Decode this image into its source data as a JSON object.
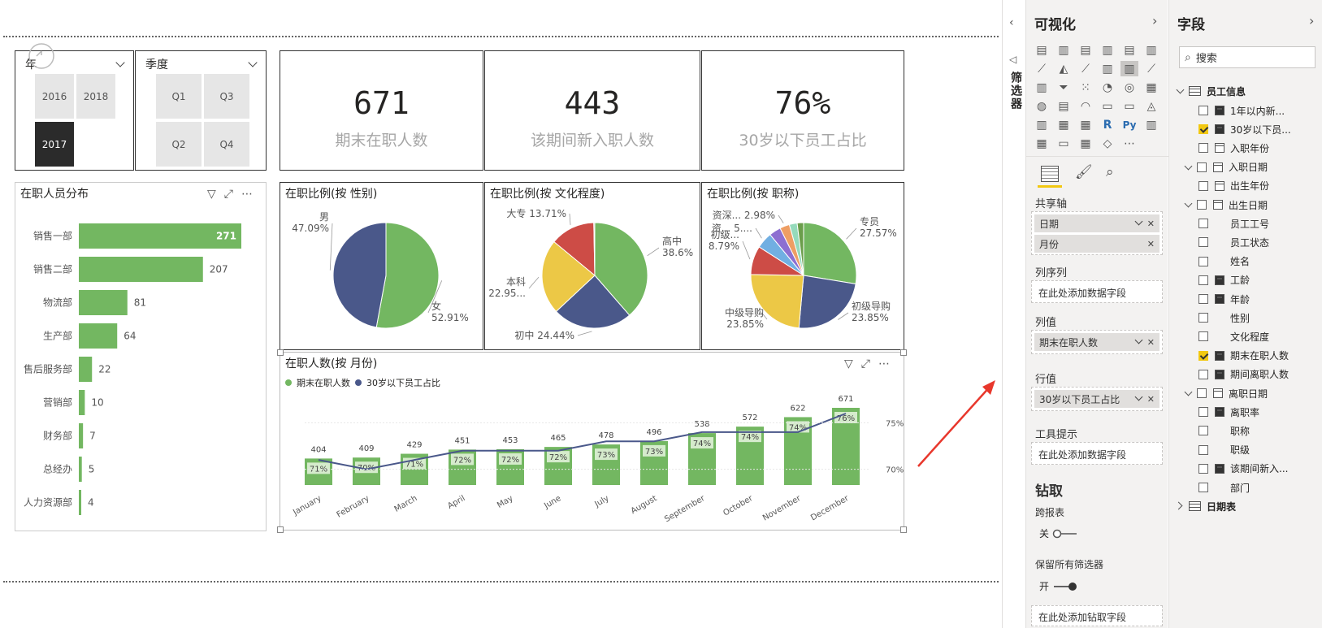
{
  "slicers": {
    "year": {
      "title": "年",
      "tiles": [
        "2016",
        "2018",
        "2017"
      ],
      "selected": "2017"
    },
    "quarter": {
      "title": "季度",
      "tiles": [
        "Q1",
        "Q3",
        "Q2",
        "Q4"
      ]
    }
  },
  "kpis": [
    {
      "value": "671",
      "label": "期末在职人数"
    },
    {
      "value": "443",
      "label": "该期间新入职人数"
    },
    {
      "value": "76%",
      "label": "30岁以下员工占比"
    }
  ],
  "dept_chart": {
    "title": "在职人员分布",
    "chart_data": {
      "type": "bar",
      "orientation": "horizontal",
      "categories": [
        "销售一部",
        "销售二部",
        "物流部",
        "生产部",
        "售后服务部",
        "营销部",
        "财务部",
        "总经办",
        "人力资源部"
      ],
      "values": [
        271,
        207,
        81,
        64,
        22,
        10,
        7,
        5,
        4
      ],
      "color": "#73b761"
    }
  },
  "pies": [
    {
      "title": "在职比例(按 性别)",
      "chart_data": {
        "type": "pie",
        "slices": [
          {
            "label": "女",
            "value": 52.91,
            "pct": "52.91%",
            "color": "#73b761"
          },
          {
            "label": "男",
            "value": 47.09,
            "pct": "47.09%",
            "color": "#4a588a"
          }
        ]
      }
    },
    {
      "title": "在职比例(按 文化程度)",
      "chart_data": {
        "type": "pie",
        "slices": [
          {
            "label": "高中",
            "value": 38.6,
            "pct": "38.6%",
            "color": "#73b761"
          },
          {
            "label": "初中",
            "value": 24.44,
            "pct": "24.44%",
            "color": "#4a588a"
          },
          {
            "label": "本科",
            "value": 22.95,
            "pct": "22.95...",
            "color": "#ecc846"
          },
          {
            "label": "大专",
            "value": 13.71,
            "pct": "13.71%",
            "color": "#cd4c46"
          },
          {
            "label": "",
            "value": 0.3,
            "pct": "",
            "color": "#999999"
          }
        ]
      }
    },
    {
      "title": "在职比例(按 职称)",
      "chart_data": {
        "type": "pie",
        "slices": [
          {
            "label": "专员",
            "value": 27.57,
            "pct": "27.57%",
            "color": "#73b761"
          },
          {
            "label": "初级导购",
            "value": 23.85,
            "pct": "23.85%",
            "color": "#4a588a"
          },
          {
            "label": "中级导购",
            "value": 23.85,
            "pct": "23.85%",
            "color": "#ecc846"
          },
          {
            "label": "初级...",
            "value": 8.79,
            "pct": "8.79%",
            "color": "#cd4c46"
          },
          {
            "label": "资...",
            "value": 5,
            "pct": "5....",
            "color": "#71afe2"
          },
          {
            "label": "",
            "value": 3.6,
            "pct": "",
            "color": "#8d6fd1"
          },
          {
            "label": "资深...",
            "value": 2.98,
            "pct": "2.98%",
            "color": "#ee9e64"
          },
          {
            "label": "",
            "value": 2.4,
            "pct": "",
            "color": "#95dabb"
          },
          {
            "label": "",
            "value": 1.96,
            "pct": "",
            "color": "#6b9e4b"
          }
        ]
      }
    }
  ],
  "combo_chart": {
    "title": "在职人数(按 月份)",
    "legend": [
      "期末在职人数",
      "30岁以下员工占比"
    ],
    "chart_data": {
      "type": "bar+line",
      "categories": [
        "January",
        "February",
        "March",
        "April",
        "May",
        "June",
        "July",
        "August",
        "September",
        "October",
        "November",
        "December"
      ],
      "series": [
        {
          "name": "期末在职人数",
          "type": "bar",
          "values": [
            404,
            409,
            429,
            451,
            453,
            465,
            478,
            496,
            538,
            572,
            622,
            671
          ],
          "color": "#73b761"
        },
        {
          "name": "30岁以下员工占比",
          "type": "line",
          "values": [
            71,
            70,
            71,
            72,
            72,
            72,
            73,
            73,
            74,
            74,
            74,
            76
          ],
          "labels": [
            "71%",
            "70%",
            "71%",
            "72%",
            "72%",
            "72%",
            "73%",
            "73%",
            "74%",
            "74%",
            "74%",
            "76%"
          ],
          "color": "#4a588a"
        }
      ],
      "y2_ticks": [
        "75%",
        "70%"
      ]
    }
  },
  "filter_pane": {
    "label": "筛选器"
  },
  "viz_pane": {
    "title": "可视化",
    "sections": {
      "shared_axis": "共享轴",
      "shared_axis_items": [
        "日期",
        "月份"
      ],
      "column_series": "列序列",
      "column_series_placeholder": "在此处添加数据字段",
      "column_values": "列值",
      "column_values_item": "期末在职人数",
      "row_values": "行值",
      "row_values_item": "30岁以下员工占比",
      "tooltips": "工具提示",
      "tooltips_placeholder": "在此处添加数据字段",
      "drill": "钻取",
      "cross_report": "跨报表",
      "cross_report_state": "关",
      "keep_filters": "保留所有筛选器",
      "keep_filters_state": "开",
      "drill_placeholder": "在此处添加钻取字段"
    },
    "icons_extra": [
      "R",
      "Py",
      "⋯"
    ]
  },
  "fields_pane": {
    "title": "字段",
    "search_placeholder": "搜索",
    "tables": [
      {
        "name": "员工信息",
        "fields": [
          {
            "name": "1年以内新...",
            "icon": "calc",
            "checked": false
          },
          {
            "name": "30岁以下员...",
            "icon": "calc",
            "checked": true
          },
          {
            "name": "入职年份",
            "icon": "cal",
            "checked": false
          },
          {
            "name": "入职日期",
            "icon": "cal",
            "checked": false,
            "expand": true
          },
          {
            "name": "出生年份",
            "icon": "cal",
            "checked": false
          },
          {
            "name": "出生日期",
            "icon": "cal",
            "checked": false,
            "expand": true
          },
          {
            "name": "员工工号",
            "icon": "",
            "checked": false
          },
          {
            "name": "员工状态",
            "icon": "",
            "checked": false
          },
          {
            "name": "姓名",
            "icon": "",
            "checked": false
          },
          {
            "name": "工龄",
            "icon": "calc",
            "checked": false
          },
          {
            "name": "年龄",
            "icon": "calc",
            "checked": false
          },
          {
            "name": "性别",
            "icon": "",
            "checked": false
          },
          {
            "name": "文化程度",
            "icon": "",
            "checked": false
          },
          {
            "name": "期末在职人数",
            "icon": "calc",
            "checked": true
          },
          {
            "name": "期间离职人数",
            "icon": "calc",
            "checked": false
          },
          {
            "name": "离职日期",
            "icon": "cal",
            "checked": false,
            "expand": true
          },
          {
            "name": "离职率",
            "icon": "calc",
            "checked": false
          },
          {
            "name": "职称",
            "icon": "",
            "checked": false
          },
          {
            "name": "职级",
            "icon": "",
            "checked": false
          },
          {
            "name": "该期间新入...",
            "icon": "calc",
            "checked": false
          },
          {
            "name": "部门",
            "icon": "",
            "checked": false
          }
        ]
      },
      {
        "name": "日期表",
        "fields": []
      }
    ]
  }
}
